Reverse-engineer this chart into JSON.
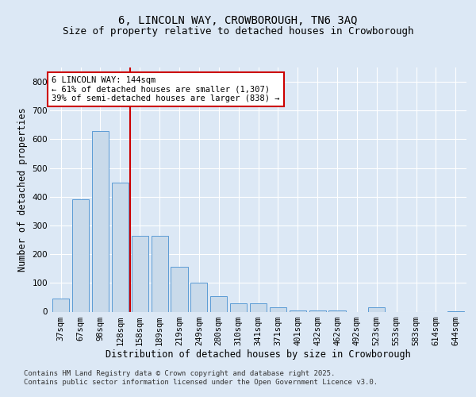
{
  "title_line1": "6, LINCOLN WAY, CROWBOROUGH, TN6 3AQ",
  "title_line2": "Size of property relative to detached houses in Crowborough",
  "xlabel": "Distribution of detached houses by size in Crowborough",
  "ylabel": "Number of detached properties",
  "categories": [
    "37sqm",
    "67sqm",
    "98sqm",
    "128sqm",
    "158sqm",
    "189sqm",
    "219sqm",
    "249sqm",
    "280sqm",
    "310sqm",
    "341sqm",
    "371sqm",
    "401sqm",
    "432sqm",
    "462sqm",
    "492sqm",
    "523sqm",
    "553sqm",
    "583sqm",
    "614sqm",
    "644sqm"
  ],
  "values": [
    45,
    390,
    630,
    450,
    265,
    265,
    155,
    100,
    55,
    30,
    30,
    15,
    5,
    5,
    5,
    0,
    15,
    0,
    0,
    0,
    2
  ],
  "bar_color": "#c9daea",
  "bar_edge_color": "#5b9bd5",
  "ref_line_x": 3.5,
  "ref_line_label": "6 LINCOLN WAY: 144sqm",
  "ref_line_smaller": "← 61% of detached houses are smaller (1,307)",
  "ref_line_larger": "39% of semi-detached houses are larger (838) →",
  "annotation_box_color": "#ffffff",
  "annotation_box_edge": "#cc0000",
  "ref_line_color": "#cc0000",
  "ylim": [
    0,
    850
  ],
  "yticks": [
    0,
    100,
    200,
    300,
    400,
    500,
    600,
    700,
    800
  ],
  "background_color": "#dce8f5",
  "plot_bg_color": "#dce8f5",
  "footer_line1": "Contains HM Land Registry data © Crown copyright and database right 2025.",
  "footer_line2": "Contains public sector information licensed under the Open Government Licence v3.0.",
  "title_fontsize": 10,
  "axis_label_fontsize": 8.5,
  "tick_fontsize": 7.5,
  "annotation_fontsize": 7.5
}
